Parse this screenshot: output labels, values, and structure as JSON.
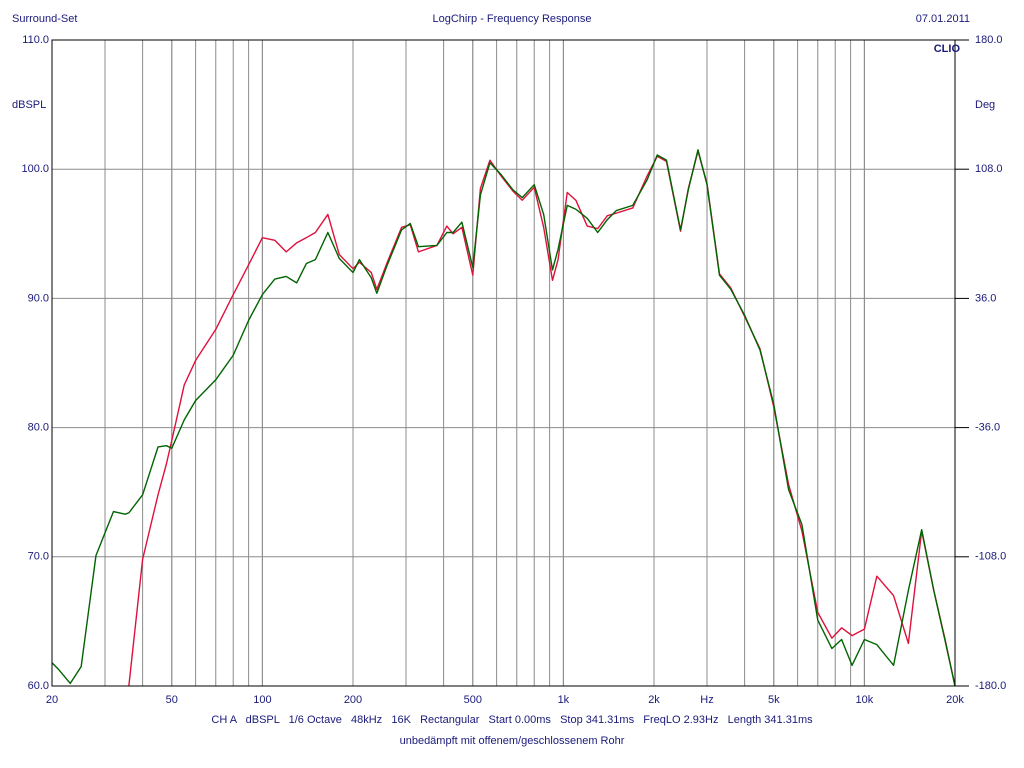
{
  "chart_data": {
    "type": "line",
    "title": "LogChirp - Frequency Response",
    "left_header": "Surround-Set",
    "date": "07.01.2011",
    "brand": "CLIO",
    "ylabel": "dBSPL",
    "y2label": "Deg",
    "info": "CH A   dBSPL   1/6 Octave   48kHz   16K   Rectangular   Start 0.00ms   Stop 341.31ms   FreqLO 2.93Hz   Length 341.31ms",
    "subtitle": "unbedämpft mit offenem/geschlossenem Rohr",
    "xscale": "log",
    "grid": true,
    "xlim": [
      20,
      20000
    ],
    "ylim": [
      60,
      110
    ],
    "y2lim": [
      -180,
      180
    ],
    "xticks": [
      20,
      50,
      100,
      200,
      500,
      {
        "value": 1000,
        "label": "1k"
      },
      {
        "value": 2000,
        "label": "2k"
      },
      {
        "value": 3000,
        "label": "Hz"
      },
      {
        "value": 5000,
        "label": "5k"
      },
      {
        "value": 10000,
        "label": "10k"
      },
      {
        "value": 20000,
        "label": "20k"
      }
    ],
    "yticks": [
      {
        "value": 60,
        "label": "60.0"
      },
      {
        "value": 70,
        "label": "70.0"
      },
      {
        "value": 80,
        "label": "80.0"
      },
      {
        "value": 90,
        "label": "90.0"
      },
      {
        "value": 100,
        "label": "100.0"
      },
      {
        "value": 110,
        "label": "110.0"
      }
    ],
    "y2ticks": [
      {
        "value": -180,
        "label": "-180.0"
      },
      {
        "value": -108,
        "label": "-108.0"
      },
      {
        "value": -36,
        "label": "-36.0"
      },
      {
        "value": 36,
        "label": "36.0"
      },
      {
        "value": 108,
        "label": "108.0"
      },
      {
        "value": 180,
        "label": "180.0"
      }
    ],
    "x": [
      20,
      21,
      23,
      25,
      28,
      32,
      35,
      36,
      40,
      45,
      48,
      50,
      55,
      60,
      70,
      80,
      90,
      100,
      110,
      120,
      130,
      140,
      150,
      165,
      180,
      200,
      210,
      230,
      240,
      260,
      290,
      310,
      330,
      380,
      410,
      430,
      460,
      500,
      530,
      570,
      620,
      680,
      730,
      800,
      860,
      920,
      960,
      1030,
      1100,
      1200,
      1300,
      1400,
      1500,
      1700,
      1900,
      2050,
      2200,
      2450,
      2600,
      2800,
      3000,
      3300,
      3600,
      4000,
      4500,
      5000,
      5600,
      6200,
      7000,
      7800,
      8400,
      9100,
      10000,
      11000,
      12500,
      14000,
      15500,
      17000,
      18500,
      20000
    ],
    "series": [
      {
        "color": "#e0103c",
        "values": [
          null,
          null,
          null,
          null,
          null,
          null,
          null,
          60.0,
          69.8,
          74.8,
          77.2,
          79.0,
          83.3,
          85.2,
          87.6,
          90.3,
          92.6,
          94.7,
          94.5,
          93.6,
          94.3,
          94.7,
          95.1,
          96.5,
          93.4,
          92.3,
          92.8,
          92.0,
          90.7,
          92.8,
          95.5,
          95.7,
          93.6,
          94.1,
          95.6,
          95.0,
          95.5,
          91.8,
          98.5,
          100.7,
          99.5,
          98.3,
          97.6,
          98.6,
          95.5,
          91.4,
          93.0,
          98.2,
          97.6,
          95.6,
          95.4,
          96.4,
          96.6,
          97.0,
          99.5,
          101.0,
          100.6,
          95.2,
          98.5,
          101.4,
          98.9,
          91.9,
          90.8,
          88.6,
          86.1,
          81.6,
          75.6,
          72.0,
          65.7,
          63.7,
          64.5,
          63.9,
          64.4,
          68.5,
          67.0,
          63.3,
          72.0,
          67.4,
          63.7,
          60.0
        ]
      },
      {
        "color": "#006400",
        "values": [
          61.8,
          61.3,
          60.2,
          61.5,
          70.1,
          73.5,
          73.3,
          73.4,
          74.8,
          78.5,
          78.6,
          78.4,
          80.6,
          82.1,
          83.7,
          85.6,
          88.3,
          90.3,
          91.5,
          91.7,
          91.2,
          92.7,
          93.0,
          95.1,
          93.1,
          92.0,
          93.0,
          91.6,
          90.4,
          92.6,
          95.3,
          95.8,
          94.0,
          94.1,
          95.1,
          95.1,
          95.9,
          92.4,
          98.0,
          100.5,
          99.6,
          98.4,
          97.8,
          98.8,
          96.5,
          92.2,
          93.8,
          97.2,
          96.9,
          96.2,
          95.1,
          96.1,
          96.8,
          97.2,
          99.2,
          101.1,
          100.7,
          95.3,
          98.4,
          101.5,
          98.8,
          91.8,
          90.7,
          88.7,
          86.0,
          81.8,
          75.2,
          72.5,
          65.1,
          62.9,
          63.6,
          61.6,
          63.6,
          63.2,
          61.6,
          67.4,
          72.1,
          67.4,
          63.6,
          60.0
        ]
      }
    ]
  }
}
